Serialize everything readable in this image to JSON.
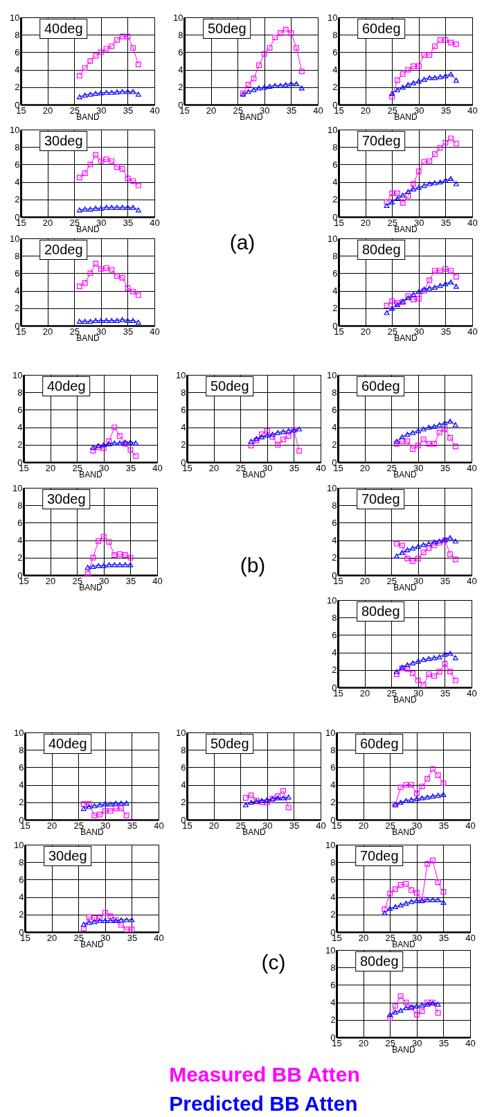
{
  "chart_data": [
    {
      "type": "line",
      "title": "40deg",
      "xlabel": "BAND",
      "x": [
        26,
        27,
        28,
        29,
        30,
        31,
        32,
        33,
        34,
        35,
        36,
        37
      ],
      "series": [
        {
          "color": "#ff00ff",
          "marker": "square",
          "values": [
            3.3,
            4.2,
            5.0,
            5.6,
            6.0,
            6.4,
            6.7,
            7.4,
            7.8,
            7.8,
            6.5,
            4.6
          ]
        },
        {
          "color": "#0000ff",
          "marker": "triangle",
          "values": [
            0.9,
            1.1,
            1.2,
            1.3,
            1.35,
            1.4,
            1.4,
            1.45,
            1.5,
            1.5,
            1.5,
            1.2
          ]
        }
      ],
      "xlim": [
        15,
        40
      ],
      "xticks": [
        15,
        20,
        25,
        30,
        35,
        40
      ],
      "ylim": [
        0,
        10
      ],
      "yticks": [
        0,
        2,
        4,
        6,
        8,
        10
      ],
      "grid": true
    },
    {
      "type": "line",
      "title": "50deg",
      "xlabel": "BAND",
      "x": [
        26,
        27,
        28,
        29,
        30,
        31,
        32,
        33,
        34,
        35,
        36,
        37
      ],
      "series": [
        {
          "color": "#ff00ff",
          "marker": "square",
          "values": [
            1.3,
            2.3,
            3.0,
            4.5,
            5.8,
            6.5,
            7.7,
            8.2,
            8.6,
            8.2,
            6.5,
            3.8
          ]
        },
        {
          "color": "#0000ff",
          "marker": "triangle",
          "values": [
            1.2,
            1.5,
            1.7,
            1.9,
            2.0,
            2.1,
            2.2,
            2.2,
            2.3,
            2.4,
            2.4,
            1.9
          ]
        }
      ],
      "xlim": [
        15,
        40
      ],
      "xticks": [
        15,
        20,
        25,
        30,
        35,
        40
      ],
      "ylim": [
        0,
        10
      ],
      "yticks": [
        0,
        2,
        4,
        6,
        8,
        10
      ],
      "grid": true
    },
    {
      "type": "line",
      "title": "60deg",
      "xlabel": "BAND",
      "x": [
        25,
        26,
        27,
        28,
        29,
        30,
        31,
        32,
        33,
        34,
        35,
        36,
        37
      ],
      "series": [
        {
          "color": "#ff00ff",
          "marker": "square",
          "values": [
            0.9,
            2.8,
            3.5,
            4.0,
            4.4,
            4.4,
            5.7,
            5.7,
            6.7,
            7.4,
            7.4,
            7.1,
            6.9
          ]
        },
        {
          "color": "#0000ff",
          "marker": "triangle",
          "values": [
            1.3,
            1.7,
            2.0,
            2.3,
            2.5,
            2.7,
            2.9,
            3.1,
            3.1,
            3.2,
            3.3,
            3.5,
            2.8
          ]
        }
      ],
      "xlim": [
        15,
        40
      ],
      "xticks": [
        15,
        20,
        25,
        30,
        35,
        40
      ],
      "ylim": [
        0,
        10
      ],
      "yticks": [
        0,
        2,
        4,
        6,
        8,
        10
      ],
      "grid": true
    },
    {
      "type": "line",
      "title": "30deg",
      "xlabel": "BAND",
      "x": [
        26,
        27,
        28,
        29,
        30,
        31,
        32,
        33,
        34,
        35,
        36,
        37
      ],
      "series": [
        {
          "color": "#ff00ff",
          "marker": "square",
          "values": [
            4.5,
            5.0,
            6.0,
            7.1,
            6.4,
            6.6,
            6.4,
            5.7,
            5.5,
            4.4,
            4.1,
            3.6
          ]
        },
        {
          "color": "#0000ff",
          "marker": "triangle",
          "values": [
            0.8,
            0.9,
            0.9,
            1.0,
            1.0,
            1.1,
            1.1,
            1.1,
            1.1,
            1.1,
            1.1,
            0.8
          ]
        }
      ],
      "xlim": [
        15,
        40
      ],
      "xticks": [
        15,
        20,
        25,
        30,
        35,
        40
      ],
      "ylim": [
        0,
        10
      ],
      "yticks": [
        0,
        2,
        4,
        6,
        8,
        10
      ],
      "grid": true
    },
    {
      "type": "line",
      "title": "70deg",
      "xlabel": "BAND",
      "x": [
        24,
        25,
        26,
        27,
        28,
        29,
        30,
        31,
        32,
        33,
        34,
        35,
        36,
        37
      ],
      "series": [
        {
          "color": "#ff00ff",
          "marker": "square",
          "values": [
            1.7,
            2.7,
            2.7,
            1.6,
            2.4,
            3.8,
            5.2,
            6.3,
            6.4,
            7.2,
            7.9,
            8.5,
            9.0,
            8.4
          ]
        },
        {
          "color": "#0000ff",
          "marker": "triangle",
          "values": [
            1.3,
            1.7,
            2.1,
            2.5,
            2.9,
            3.2,
            3.4,
            3.6,
            3.8,
            3.9,
            4.0,
            4.2,
            4.4,
            3.8
          ]
        }
      ],
      "xlim": [
        15,
        40
      ],
      "xticks": [
        15,
        20,
        25,
        30,
        35,
        40
      ],
      "ylim": [
        0,
        10
      ],
      "yticks": [
        0,
        2,
        4,
        6,
        8,
        10
      ],
      "grid": true
    },
    {
      "type": "line",
      "title": "20deg",
      "xlabel": "BAND",
      "x": [
        26,
        27,
        28,
        29,
        30,
        31,
        32,
        33,
        34,
        35,
        36,
        37
      ],
      "series": [
        {
          "color": "#ff00ff",
          "marker": "square",
          "values": [
            4.5,
            4.9,
            6.0,
            7.1,
            6.5,
            6.6,
            6.4,
            5.7,
            5.5,
            4.3,
            3.9,
            3.5
          ]
        },
        {
          "color": "#0000ff",
          "marker": "triangle",
          "values": [
            0.5,
            0.5,
            0.5,
            0.6,
            0.6,
            0.6,
            0.6,
            0.6,
            0.7,
            0.6,
            0.6,
            0.4
          ]
        }
      ],
      "xlim": [
        15,
        40
      ],
      "xticks": [
        15,
        20,
        25,
        30,
        35,
        40
      ],
      "ylim": [
        0,
        10
      ],
      "yticks": [
        0,
        2,
        4,
        6,
        8,
        10
      ],
      "grid": true
    },
    {
      "type": "other",
      "annotations": [
        "(a)"
      ]
    },
    {
      "type": "line",
      "title": "80deg",
      "xlabel": "BAND",
      "x": [
        24,
        25,
        26,
        27,
        28,
        29,
        30,
        31,
        32,
        33,
        34,
        35,
        36,
        37
      ],
      "series": [
        {
          "color": "#ff00ff",
          "marker": "square",
          "values": [
            2.3,
            2.8,
            2.6,
            2.7,
            3.4,
            3.0,
            3.1,
            4.0,
            5.2,
            6.3,
            6.3,
            6.5,
            6.3,
            5.6
          ]
        },
        {
          "color": "#0000ff",
          "marker": "triangle",
          "values": [
            1.5,
            2.0,
            2.4,
            2.8,
            3.2,
            3.6,
            3.9,
            4.2,
            4.3,
            4.4,
            4.6,
            4.8,
            5.0,
            4.5
          ]
        }
      ],
      "xlim": [
        15,
        40
      ],
      "xticks": [
        15,
        20,
        25,
        30,
        35,
        40
      ],
      "ylim": [
        0,
        10
      ],
      "yticks": [
        0,
        2,
        4,
        6,
        8,
        10
      ],
      "grid": true
    },
    {
      "type": "line",
      "title": "40deg",
      "xlabel": "BAND",
      "x": [
        28,
        29,
        30,
        31,
        32,
        33,
        34,
        35,
        36
      ],
      "series": [
        {
          "color": "#ff00ff",
          "marker": "square",
          "values": [
            1.3,
            1.7,
            1.6,
            2.4,
            4.0,
            3.0,
            2.1,
            1.4,
            0.7
          ]
        },
        {
          "color": "#0000ff",
          "marker": "triangle",
          "values": [
            1.7,
            1.9,
            2.0,
            2.1,
            2.2,
            2.2,
            2.3,
            2.3,
            2.2
          ]
        }
      ],
      "xlim": [
        15,
        40
      ],
      "xticks": [
        15,
        20,
        25,
        30,
        35,
        40
      ],
      "ylim": [
        0,
        10
      ],
      "yticks": [
        0,
        2,
        4,
        6,
        8,
        10
      ],
      "grid": true
    },
    {
      "type": "line",
      "title": "50deg",
      "xlabel": "BAND",
      "x": [
        27,
        28,
        29,
        30,
        31,
        32,
        33,
        34,
        35,
        36
      ],
      "series": [
        {
          "color": "#ff00ff",
          "marker": "square",
          "values": [
            1.9,
            2.5,
            3.2,
            3.6,
            2.9,
            2.0,
            2.6,
            3.0,
            3.7,
            1.3
          ]
        },
        {
          "color": "#0000ff",
          "marker": "triangle",
          "values": [
            2.4,
            2.7,
            2.9,
            3.1,
            3.2,
            3.4,
            3.5,
            3.6,
            3.7,
            3.8
          ]
        }
      ],
      "xlim": [
        15,
        40
      ],
      "xticks": [
        15,
        20,
        25,
        30,
        35,
        40
      ],
      "ylim": [
        0,
        10
      ],
      "yticks": [
        0,
        2,
        4,
        6,
        8,
        10
      ],
      "grid": true
    },
    {
      "type": "line",
      "title": "60deg",
      "xlabel": "BAND",
      "x": [
        26,
        27,
        28,
        29,
        30,
        31,
        32,
        33,
        34,
        35,
        36,
        37
      ],
      "series": [
        {
          "color": "#ff00ff",
          "marker": "square",
          "values": [
            2.1,
            2.4,
            2.4,
            1.5,
            1.9,
            2.6,
            2.1,
            2.1,
            3.4,
            3.8,
            2.8,
            1.8
          ]
        },
        {
          "color": "#0000ff",
          "marker": "triangle",
          "values": [
            2.4,
            2.9,
            3.2,
            3.4,
            3.6,
            3.8,
            4.0,
            4.1,
            4.3,
            4.5,
            4.7,
            4.3
          ]
        }
      ],
      "xlim": [
        15,
        40
      ],
      "xticks": [
        15,
        20,
        25,
        30,
        35,
        40
      ],
      "ylim": [
        0,
        10
      ],
      "yticks": [
        0,
        2,
        4,
        6,
        8,
        10
      ],
      "grid": true
    },
    {
      "type": "line",
      "title": "30deg",
      "xlabel": "BAND",
      "x": [
        27,
        28,
        29,
        30,
        31,
        32,
        33,
        34,
        35
      ],
      "series": [
        {
          "color": "#ff00ff",
          "marker": "square",
          "values": [
            0.2,
            2.0,
            3.9,
            4.4,
            3.8,
            2.3,
            2.4,
            2.3,
            2.0
          ]
        },
        {
          "color": "#0000ff",
          "marker": "triangle",
          "values": [
            0.9,
            1.0,
            1.1,
            1.1,
            1.2,
            1.2,
            1.2,
            1.2,
            1.2
          ]
        }
      ],
      "xlim": [
        15,
        40
      ],
      "xticks": [
        15,
        20,
        25,
        30,
        35,
        40
      ],
      "ylim": [
        0,
        10
      ],
      "yticks": [
        0,
        2,
        4,
        6,
        8,
        10
      ],
      "grid": true
    },
    {
      "type": "other",
      "annotations": [
        "(b)"
      ]
    },
    {
      "type": "line",
      "title": "70deg",
      "xlabel": "BAND",
      "x": [
        26,
        27,
        28,
        29,
        30,
        31,
        32,
        33,
        34,
        35,
        36,
        37
      ],
      "series": [
        {
          "color": "#ff00ff",
          "marker": "square",
          "values": [
            3.6,
            3.4,
            1.9,
            1.6,
            1.9,
            2.6,
            3.1,
            3.4,
            3.7,
            4.0,
            2.4,
            1.8
          ]
        },
        {
          "color": "#0000ff",
          "marker": "triangle",
          "values": [
            2.2,
            2.6,
            2.9,
            3.1,
            3.3,
            3.5,
            3.6,
            3.8,
            3.9,
            4.1,
            4.3,
            3.9
          ]
        }
      ],
      "xlim": [
        15,
        40
      ],
      "xticks": [
        15,
        20,
        25,
        30,
        35,
        40
      ],
      "ylim": [
        0,
        10
      ],
      "yticks": [
        0,
        2,
        4,
        6,
        8,
        10
      ],
      "grid": true
    },
    {
      "type": "line",
      "title": "80deg",
      "xlabel": "BAND",
      "x": [
        26,
        27,
        28,
        29,
        30,
        31,
        32,
        33,
        34,
        35,
        36,
        37
      ],
      "series": [
        {
          "color": "#ff00ff",
          "marker": "square",
          "values": [
            1.5,
            2.2,
            2.1,
            1.6,
            0.8,
            0.3,
            1.5,
            1.3,
            1.8,
            2.7,
            1.8,
            0.8
          ]
        },
        {
          "color": "#0000ff",
          "marker": "triangle",
          "values": [
            1.8,
            2.3,
            2.6,
            2.8,
            3.0,
            3.2,
            3.3,
            3.4,
            3.5,
            3.8,
            3.9,
            3.4
          ]
        }
      ],
      "xlim": [
        15,
        40
      ],
      "xticks": [
        15,
        20,
        25,
        30,
        35,
        40
      ],
      "ylim": [
        0,
        10
      ],
      "yticks": [
        0,
        2,
        4,
        6,
        8,
        10
      ],
      "grid": true
    },
    {
      "type": "line",
      "title": "40deg",
      "xlabel": "BAND",
      "x": [
        26,
        27,
        28,
        29,
        30,
        31,
        32,
        33,
        34
      ],
      "series": [
        {
          "color": "#ff00ff",
          "marker": "square",
          "values": [
            1.8,
            1.8,
            0.5,
            0.6,
            1.0,
            1.0,
            1.3,
            1.3,
            0.5
          ]
        },
        {
          "color": "#0000ff",
          "marker": "triangle",
          "values": [
            1.3,
            1.5,
            1.6,
            1.7,
            1.8,
            1.8,
            1.9,
            1.9,
            1.9
          ]
        }
      ],
      "xlim": [
        15,
        40
      ],
      "xticks": [
        15,
        20,
        25,
        30,
        35,
        40
      ],
      "ylim": [
        0,
        10
      ],
      "yticks": [
        0,
        2,
        4,
        6,
        8,
        10
      ],
      "grid": true
    },
    {
      "type": "line",
      "title": "50deg",
      "xlabel": "BAND",
      "x": [
        26,
        27,
        28,
        29,
        30,
        31,
        32,
        33,
        34
      ],
      "series": [
        {
          "color": "#ff00ff",
          "marker": "square",
          "values": [
            2.5,
            2.8,
            2.2,
            2.0,
            2.0,
            2.4,
            2.7,
            3.3,
            1.4
          ]
        },
        {
          "color": "#0000ff",
          "marker": "triangle",
          "values": [
            1.7,
            2.0,
            2.1,
            2.2,
            2.3,
            2.4,
            2.5,
            2.5,
            2.6
          ]
        }
      ],
      "xlim": [
        15,
        40
      ],
      "xticks": [
        15,
        20,
        25,
        30,
        35,
        40
      ],
      "ylim": [
        0,
        10
      ],
      "yticks": [
        0,
        2,
        4,
        6,
        8,
        10
      ],
      "grid": true
    },
    {
      "type": "line",
      "title": "60deg",
      "xlabel": "BAND",
      "x": [
        26,
        27,
        28,
        29,
        30,
        31,
        32,
        33,
        34,
        35
      ],
      "series": [
        {
          "color": "#ff00ff",
          "marker": "square",
          "values": [
            1.7,
            3.7,
            4.0,
            4.0,
            3.0,
            3.8,
            4.7,
            5.8,
            5.1,
            4.2
          ]
        },
        {
          "color": "#0000ff",
          "marker": "triangle",
          "values": [
            1.8,
            2.0,
            2.2,
            2.3,
            2.4,
            2.5,
            2.6,
            2.7,
            2.8,
            2.9
          ]
        }
      ],
      "xlim": [
        15,
        40
      ],
      "xticks": [
        15,
        20,
        25,
        30,
        35,
        40
      ],
      "ylim": [
        0,
        10
      ],
      "yticks": [
        0,
        2,
        4,
        6,
        8,
        10
      ],
      "grid": true
    },
    {
      "type": "line",
      "title": "30deg",
      "xlabel": "BAND",
      "x": [
        26,
        27,
        28,
        29,
        30,
        31,
        32,
        33,
        34,
        35
      ],
      "series": [
        {
          "color": "#ff00ff",
          "marker": "square",
          "values": [
            0.4,
            1.7,
            1.6,
            1.6,
            2.2,
            1.8,
            1.4,
            0.8,
            0.3,
            0.3
          ]
        },
        {
          "color": "#0000ff",
          "marker": "triangle",
          "values": [
            0.9,
            1.1,
            1.2,
            1.3,
            1.3,
            1.3,
            1.3,
            1.4,
            1.4,
            1.4
          ]
        }
      ],
      "xlim": [
        15,
        40
      ],
      "xticks": [
        15,
        20,
        25,
        30,
        35,
        40
      ],
      "ylim": [
        0,
        10
      ],
      "yticks": [
        0,
        2,
        4,
        6,
        8,
        10
      ],
      "grid": true
    },
    {
      "type": "line",
      "title": "70deg",
      "xlabel": "BAND",
      "x": [
        24,
        25,
        26,
        27,
        28,
        29,
        30,
        31,
        32,
        33,
        34,
        35
      ],
      "series": [
        {
          "color": "#ff00ff",
          "marker": "square",
          "values": [
            2.6,
            4.4,
            4.9,
            5.4,
            5.5,
            4.8,
            4.5,
            3.7,
            7.8,
            8.2,
            5.7,
            4.6
          ]
        },
        {
          "color": "#0000ff",
          "marker": "triangle",
          "values": [
            2.2,
            2.7,
            2.9,
            3.1,
            3.3,
            3.5,
            3.6,
            3.6,
            3.7,
            3.7,
            3.7,
            3.4
          ]
        }
      ],
      "xlim": [
        15,
        40
      ],
      "xticks": [
        15,
        20,
        25,
        30,
        35,
        40
      ],
      "ylim": [
        0,
        10
      ],
      "yticks": [
        0,
        2,
        4,
        6,
        8,
        10
      ],
      "grid": true
    },
    {
      "type": "other",
      "annotations": [
        "(c)"
      ]
    },
    {
      "type": "line",
      "title": "80deg",
      "xlabel": "BAND",
      "x": [
        25,
        26,
        27,
        28,
        29,
        30,
        31,
        32,
        33,
        34
      ],
      "series": [
        {
          "name": "Measured BB Atten",
          "color": "#ff00ff",
          "marker": "square",
          "values": [
            2.2,
            3.6,
            4.7,
            4.0,
            3.4,
            2.6,
            3.0,
            4.0,
            4.0,
            2.8
          ]
        },
        {
          "name": "Predicted BB Atten",
          "color": "#0000ff",
          "marker": "triangle",
          "values": [
            2.6,
            2.9,
            3.1,
            3.4,
            3.5,
            3.6,
            3.7,
            3.8,
            3.9,
            3.8
          ]
        }
      ],
      "xlim": [
        15,
        40
      ],
      "xticks": [
        15,
        20,
        25,
        30,
        35,
        40
      ],
      "ylim": [
        0,
        10
      ],
      "yticks": [
        0,
        2,
        4,
        6,
        8,
        10
      ],
      "grid": true,
      "legend": "bottom"
    }
  ]
}
